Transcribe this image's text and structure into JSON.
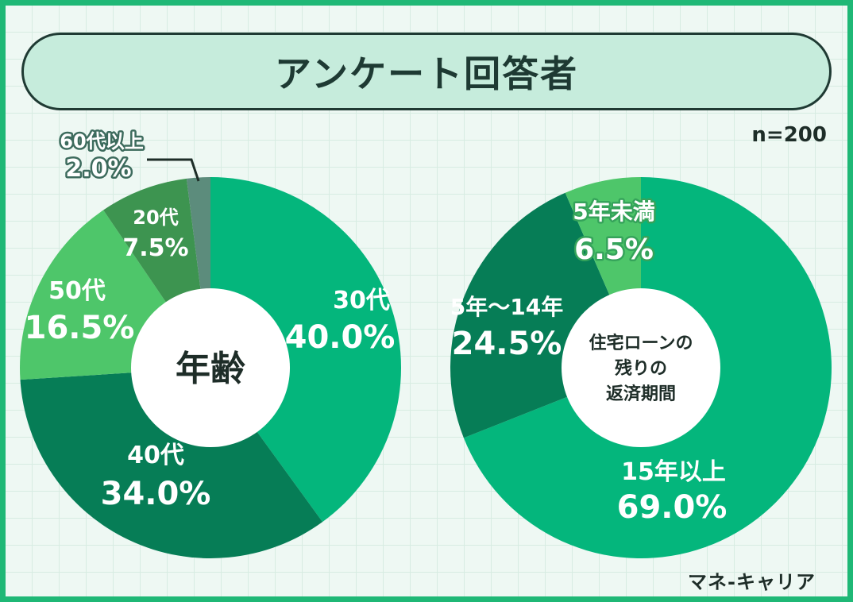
{
  "title": "アンケート回答者",
  "sample_size": "n=200",
  "brand": "マネ-キャリア",
  "chart_data": [
    {
      "type": "pie",
      "donut": true,
      "center_label": "年齢",
      "start": "top",
      "direction": "clockwise",
      "slices": [
        {
          "name": "30代",
          "value": 40.0,
          "value_label": "40.0%",
          "color": "#04b67c"
        },
        {
          "name": "40代",
          "value": 34.0,
          "value_label": "34.0%",
          "color": "#067d56"
        },
        {
          "name": "50代",
          "value": 16.5,
          "value_label": "16.5%",
          "color": "#4ec66a"
        },
        {
          "name": "20代",
          "value": 7.5,
          "value_label": "7.5%",
          "color": "#3d9450"
        },
        {
          "name": "60代以上",
          "value": 2.0,
          "value_label": "2.0%",
          "color": "#5c8c7c"
        }
      ]
    },
    {
      "type": "pie",
      "donut": true,
      "center_label": [
        "住宅ローンの",
        "残りの",
        "返済期間"
      ],
      "start": "top",
      "direction": "clockwise",
      "slices": [
        {
          "name": "15年以上",
          "value": 69.0,
          "value_label": "69.0%",
          "color": "#04b67c"
        },
        {
          "name": "5年～14年",
          "value": 24.5,
          "value_label": "24.5%",
          "color": "#067d56"
        },
        {
          "name": "5年未満",
          "value": 6.5,
          "value_label": "6.5%",
          "color": "#4ec66a"
        }
      ]
    }
  ]
}
